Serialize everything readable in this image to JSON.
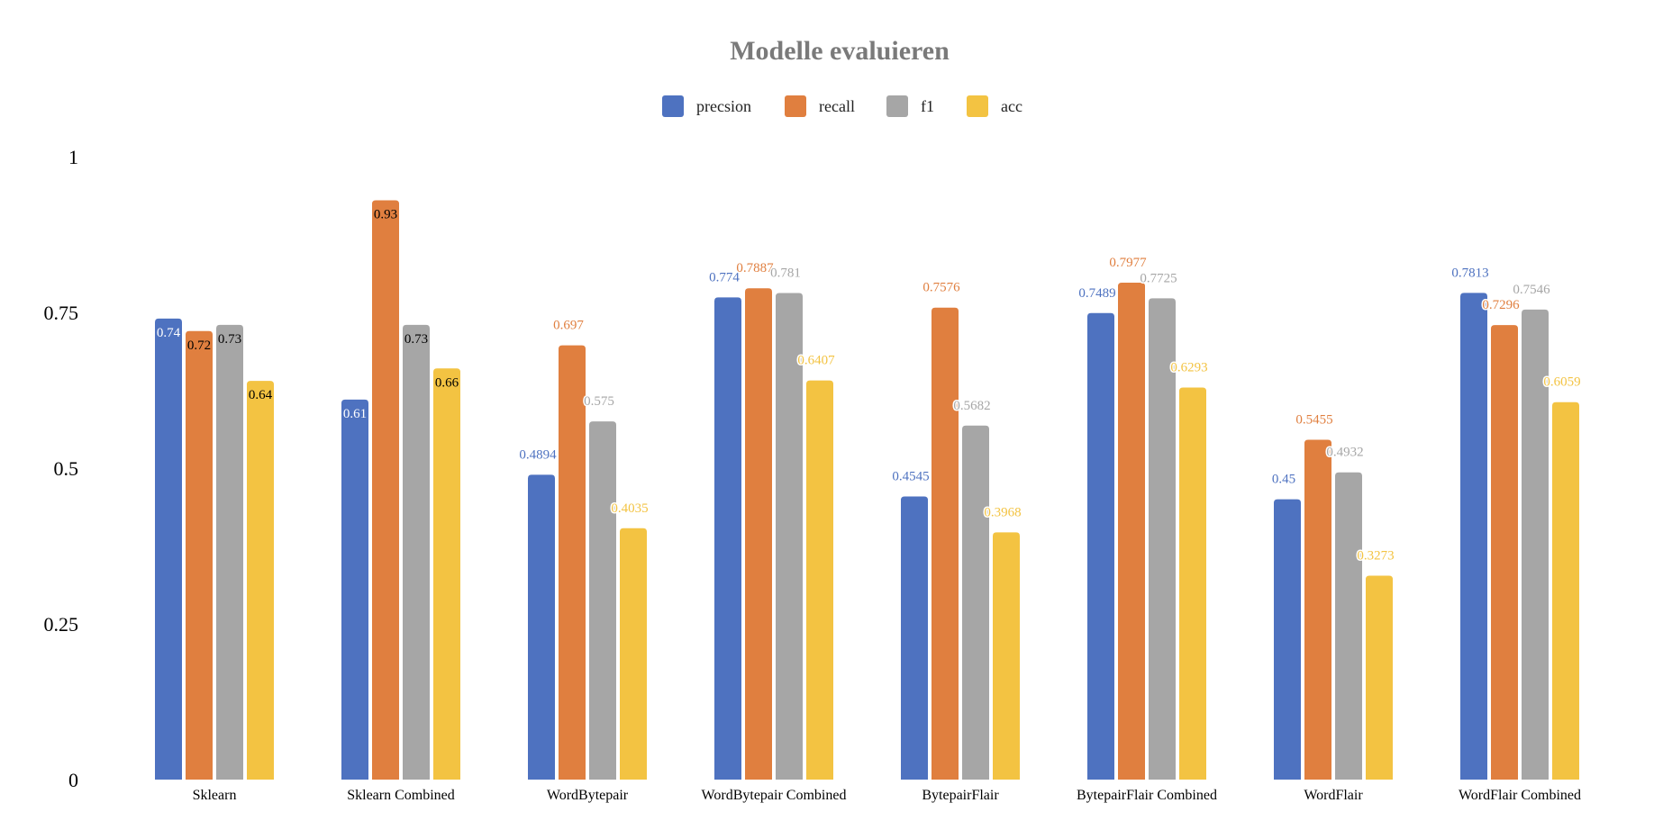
{
  "chart_data": {
    "type": "bar",
    "title": "Modelle evaluieren",
    "xlabel": "",
    "ylabel": "",
    "ylim": [
      0,
      1
    ],
    "yticks": [
      0,
      0.25,
      0.5,
      0.75,
      1
    ],
    "ytick_labels": [
      "0",
      "0.25",
      "0.5",
      "0.75",
      "1"
    ],
    "grid": false,
    "legend_position": "top",
    "categories": [
      "Sklearn",
      "Sklearn Combined",
      "WordBytepair",
      "WordBytepair Combined",
      "BytepairFlair",
      "BytepairFlair Combined",
      "WordFlair",
      "WordFlair Combined"
    ],
    "series": [
      {
        "name": "precsion",
        "color": "#4e72c0",
        "values": [
          0.74,
          0.61,
          0.4894,
          0.774,
          0.4545,
          0.7489,
          0.45,
          0.7813
        ],
        "labels": [
          "0.74",
          "0.61",
          "0.4894",
          "0.774",
          "0.4545",
          "0.7489",
          "0.45",
          "0.7813"
        ]
      },
      {
        "name": "recall",
        "color": "#e07f3f",
        "values": [
          0.72,
          0.93,
          0.697,
          0.7887,
          0.7576,
          0.7977,
          0.5455,
          0.7296
        ],
        "labels": [
          "0.72",
          "0.93",
          "0.697",
          "0.7887",
          "0.7576",
          "0.7977",
          "0.5455",
          "0.7296"
        ]
      },
      {
        "name": "f1",
        "color": "#a6a6a6",
        "values": [
          0.73,
          0.73,
          0.575,
          0.781,
          0.5682,
          0.7725,
          0.4932,
          0.7546
        ],
        "labels": [
          "0.73",
          "0.73",
          "0.575",
          "0.781",
          "0.5682",
          "0.7725",
          "0.4932",
          "0.7546"
        ]
      },
      {
        "name": "acc",
        "color": "#f3c342",
        "values": [
          0.64,
          0.66,
          0.4035,
          0.6407,
          0.3968,
          0.6293,
          0.3273,
          0.6059
        ],
        "labels": [
          "0.64",
          "0.66",
          "0.4035",
          "0.6407",
          "0.3968",
          "0.6293",
          "0.3273",
          "0.6059"
        ]
      }
    ]
  }
}
